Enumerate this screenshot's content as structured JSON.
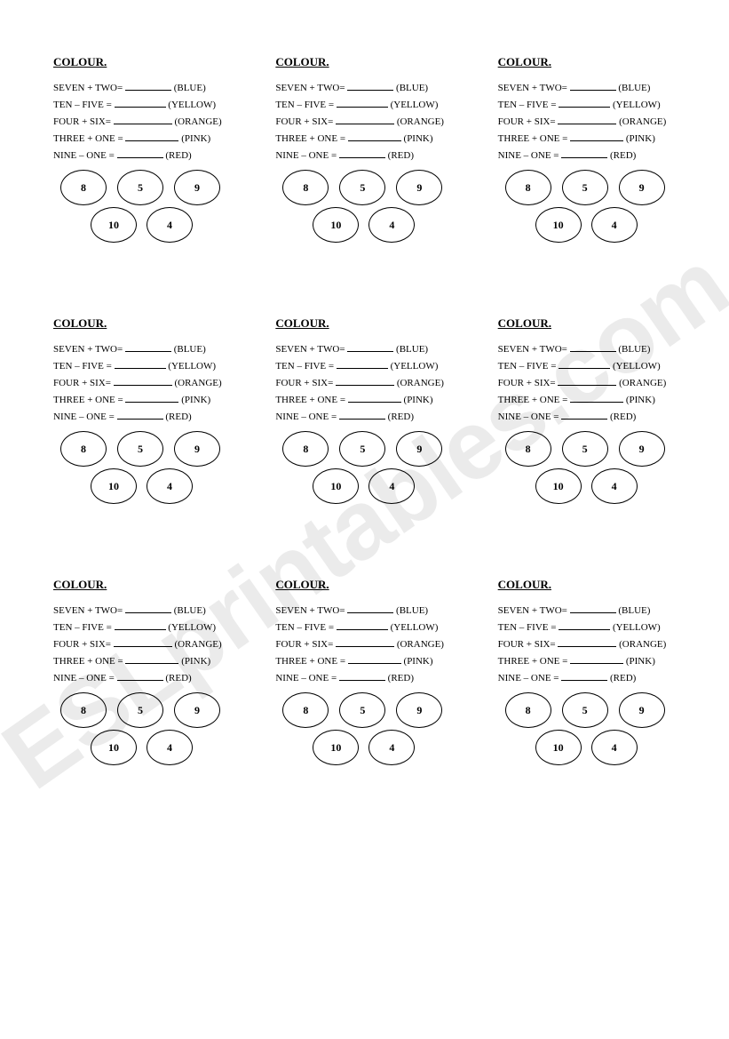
{
  "watermark": "ESLprintables.com",
  "block": {
    "title": "COLOUR.",
    "lines": [
      {
        "expr": "SEVEN + TWO=",
        "blank_w": 52,
        "color": "(BLUE)"
      },
      {
        "expr": "TEN – FIVE  =",
        "blank_w": 58,
        "color": "(YELLOW)"
      },
      {
        "expr": "FOUR + SIX=",
        "blank_w": 66,
        "color": "(ORANGE)"
      },
      {
        "expr": "THREE + ONE =",
        "blank_w": 60,
        "color": "(PINK)"
      },
      {
        "expr": "NINE – ONE =",
        "blank_w": 52,
        "color": "(RED)"
      }
    ],
    "ovals_top": [
      "8",
      "5",
      "9"
    ],
    "ovals_bottom": [
      "10",
      "4"
    ]
  },
  "grid_count": 9
}
